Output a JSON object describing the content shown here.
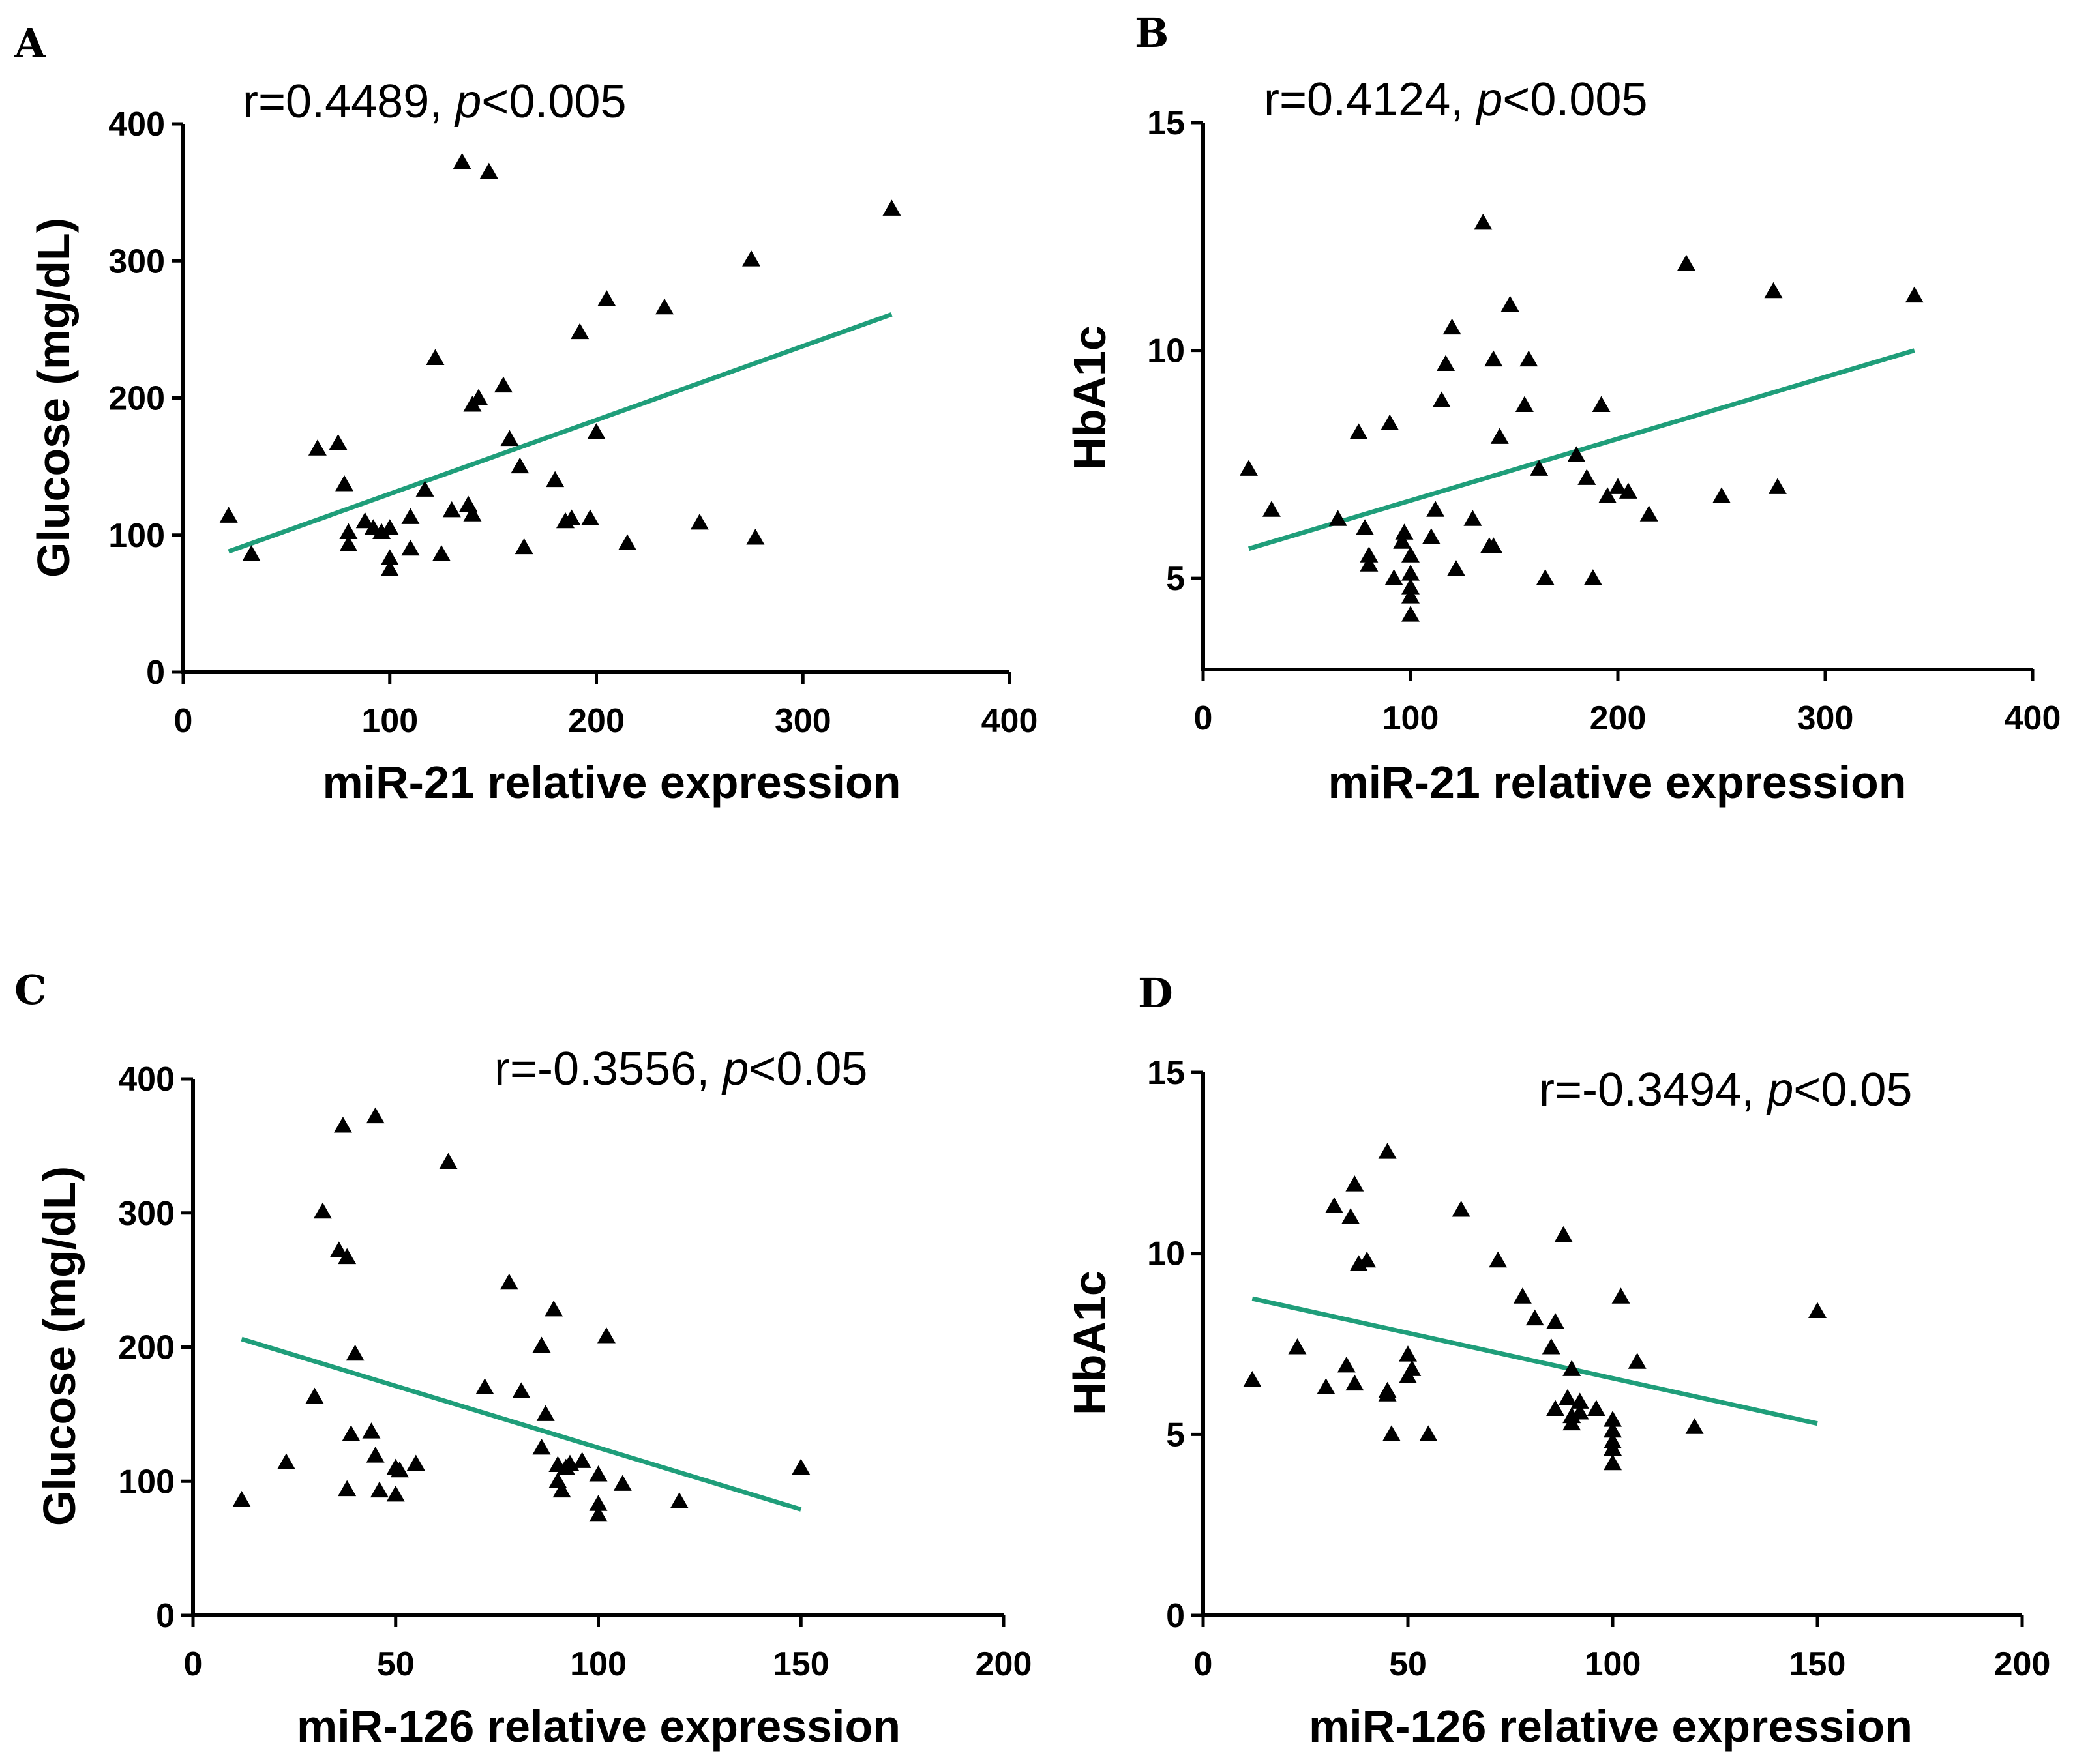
{
  "colors": {
    "fit_line": "#1f9e7a",
    "marker": "#000000",
    "axis": "#000000"
  },
  "chart_data": [
    {
      "panel": "A",
      "type": "scatter",
      "stat_prefix": "r=0.4489, ",
      "stat_p": "p",
      "stat_suffix": "<0.005",
      "xlabel": "miR-21 relative expression",
      "ylabel": "Glucose (mg/dL)",
      "xlim": [
        0,
        400
      ],
      "ylim": [
        0,
        400
      ],
      "xticks": [
        "0",
        "100",
        "200",
        "300",
        "400"
      ],
      "yticks": [
        "0",
        "100",
        "200",
        "300",
        "400"
      ],
      "marker": "triangle",
      "points": [
        [
          22,
          114
        ],
        [
          33,
          86
        ],
        [
          65,
          163
        ],
        [
          75,
          167
        ],
        [
          78,
          137
        ],
        [
          80,
          102
        ],
        [
          80,
          93
        ],
        [
          88,
          110
        ],
        [
          92,
          105
        ],
        [
          96,
          102
        ],
        [
          100,
          105
        ],
        [
          100,
          83
        ],
        [
          100,
          75
        ],
        [
          110,
          90
        ],
        [
          110,
          113
        ],
        [
          117,
          133
        ],
        [
          122,
          229
        ],
        [
          125,
          86
        ],
        [
          130,
          118
        ],
        [
          135,
          372
        ],
        [
          138,
          122
        ],
        [
          140,
          115
        ],
        [
          140,
          195
        ],
        [
          143,
          200
        ],
        [
          148,
          365
        ],
        [
          155,
          209
        ],
        [
          158,
          170
        ],
        [
          163,
          150
        ],
        [
          165,
          91
        ],
        [
          180,
          140
        ],
        [
          185,
          110
        ],
        [
          188,
          112
        ],
        [
          192,
          248
        ],
        [
          197,
          112
        ],
        [
          200,
          175
        ],
        [
          205,
          272
        ],
        [
          215,
          94
        ],
        [
          233,
          266
        ],
        [
          250,
          109
        ],
        [
          275,
          301
        ],
        [
          277,
          98
        ],
        [
          343,
          338
        ]
      ],
      "fit": {
        "x": [
          22,
          343
        ],
        "y": [
          88,
          261
        ]
      }
    },
    {
      "panel": "B",
      "type": "scatter",
      "stat_prefix": "r=0.4124, ",
      "stat_p": "p",
      "stat_suffix": "<0.005",
      "xlabel": "miR-21 relative expression",
      "ylabel": "HbA1c",
      "xlim": [
        0,
        400
      ],
      "ylim": [
        3,
        15
      ],
      "xticks": [
        "0",
        "100",
        "200",
        "300",
        "400"
      ],
      "yticks": [
        "5",
        "10",
        "15"
      ],
      "ytick_values": [
        5,
        10,
        15
      ],
      "marker": "triangle",
      "points": [
        [
          22,
          7.4
        ],
        [
          33,
          6.5
        ],
        [
          65,
          6.3
        ],
        [
          75,
          8.2
        ],
        [
          78,
          6.1
        ],
        [
          80,
          5.5
        ],
        [
          80,
          5.3
        ],
        [
          90,
          8.4
        ],
        [
          92,
          5.0
        ],
        [
          96,
          5.8
        ],
        [
          97,
          6.0
        ],
        [
          100,
          5.5
        ],
        [
          100,
          5.1
        ],
        [
          100,
          4.8
        ],
        [
          100,
          4.6
        ],
        [
          100,
          4.2
        ],
        [
          110,
          5.9
        ],
        [
          112,
          6.5
        ],
        [
          115,
          8.9
        ],
        [
          117,
          9.7
        ],
        [
          120,
          10.5
        ],
        [
          122,
          5.2
        ],
        [
          130,
          6.3
        ],
        [
          135,
          12.8
        ],
        [
          138,
          5.7
        ],
        [
          140,
          9.8
        ],
        [
          140,
          5.7
        ],
        [
          143,
          8.1
        ],
        [
          148,
          11.0
        ],
        [
          155,
          8.8
        ],
        [
          157,
          9.8
        ],
        [
          162,
          7.4
        ],
        [
          165,
          5.0
        ],
        [
          180,
          7.7
        ],
        [
          185,
          7.2
        ],
        [
          188,
          5.0
        ],
        [
          192,
          8.8
        ],
        [
          195,
          6.8
        ],
        [
          200,
          7.0
        ],
        [
          205,
          6.9
        ],
        [
          215,
          6.4
        ],
        [
          233,
          11.9
        ],
        [
          250,
          6.8
        ],
        [
          275,
          11.3
        ],
        [
          277,
          7.0
        ],
        [
          343,
          11.2
        ]
      ],
      "fit": {
        "x": [
          22,
          343
        ],
        "y": [
          5.65,
          10.0
        ]
      }
    },
    {
      "panel": "C",
      "type": "scatter",
      "stat_prefix": "r=-0.3556, ",
      "stat_p": "p",
      "stat_suffix": "<0.05",
      "xlabel": "miR-126 relative expression",
      "ylabel": "Glucose (mg/dL)",
      "xlim": [
        0,
        200
      ],
      "ylim": [
        0,
        400
      ],
      "xticks": [
        "0",
        "50",
        "100",
        "150",
        "200"
      ],
      "yticks": [
        "0",
        "100",
        "200",
        "300",
        "400"
      ],
      "marker": "triangle",
      "points": [
        [
          12,
          86
        ],
        [
          23,
          114
        ],
        [
          30,
          163
        ],
        [
          32,
          301
        ],
        [
          36,
          272
        ],
        [
          37,
          365
        ],
        [
          38,
          94
        ],
        [
          38,
          267
        ],
        [
          39,
          135
        ],
        [
          40,
          195
        ],
        [
          44,
          137
        ],
        [
          45,
          372
        ],
        [
          45,
          119
        ],
        [
          46,
          93
        ],
        [
          50,
          90
        ],
        [
          50,
          110
        ],
        [
          51,
          108
        ],
        [
          55,
          113
        ],
        [
          63,
          338
        ],
        [
          72,
          170
        ],
        [
          78,
          248
        ],
        [
          81,
          167
        ],
        [
          86,
          125
        ],
        [
          86,
          201
        ],
        [
          87,
          150
        ],
        [
          89,
          228
        ],
        [
          90,
          112
        ],
        [
          90,
          100
        ],
        [
          91,
          93
        ],
        [
          92,
          110
        ],
        [
          93,
          113
        ],
        [
          96,
          115
        ],
        [
          100,
          105
        ],
        [
          100,
          83
        ],
        [
          100,
          75
        ],
        [
          102,
          208
        ],
        [
          106,
          98
        ],
        [
          120,
          85
        ],
        [
          150,
          110
        ]
      ],
      "fit": {
        "x": [
          12,
          150
        ],
        "y": [
          206,
          79
        ]
      }
    },
    {
      "panel": "D",
      "type": "scatter",
      "stat_prefix": "r=-0.3494, ",
      "stat_p": "p",
      "stat_suffix": "<0.05",
      "xlabel": "miR-126 relative expression",
      "ylabel": "HbA1c",
      "xlim": [
        0,
        200
      ],
      "ylim": [
        0,
        15
      ],
      "xticks": [
        "0",
        "50",
        "100",
        "150",
        "200"
      ],
      "yticks": [
        "0",
        "5",
        "10",
        "15"
      ],
      "ytick_values": [
        0,
        5,
        10,
        15
      ],
      "marker": "triangle",
      "points": [
        [
          12,
          6.5
        ],
        [
          23,
          7.4
        ],
        [
          30,
          6.3
        ],
        [
          32,
          11.3
        ],
        [
          35,
          6.9
        ],
        [
          36,
          11.0
        ],
        [
          37,
          6.4
        ],
        [
          37,
          11.9
        ],
        [
          38,
          9.7
        ],
        [
          40,
          9.8
        ],
        [
          45,
          6.1
        ],
        [
          45,
          6.2
        ],
        [
          45,
          12.8
        ],
        [
          46,
          5.0
        ],
        [
          50,
          7.2
        ],
        [
          50,
          6.6
        ],
        [
          51,
          6.8
        ],
        [
          55,
          5.0
        ],
        [
          63,
          11.2
        ],
        [
          72,
          9.8
        ],
        [
          78,
          8.8
        ],
        [
          81,
          8.2
        ],
        [
          85,
          7.4
        ],
        [
          86,
          8.1
        ],
        [
          86,
          5.7
        ],
        [
          88,
          10.5
        ],
        [
          89,
          6.0
        ],
        [
          90,
          6.8
        ],
        [
          90,
          5.5
        ],
        [
          90,
          5.3
        ],
        [
          92,
          5.9
        ],
        [
          92,
          5.6
        ],
        [
          96,
          5.7
        ],
        [
          100,
          5.4
        ],
        [
          100,
          5.1
        ],
        [
          100,
          4.8
        ],
        [
          100,
          4.6
        ],
        [
          100,
          4.2
        ],
        [
          102,
          8.8
        ],
        [
          106,
          7.0
        ],
        [
          120,
          5.2
        ],
        [
          150,
          8.4
        ]
      ],
      "fit": {
        "x": [
          12,
          150
        ],
        "y": [
          8.75,
          5.3
        ]
      }
    }
  ]
}
